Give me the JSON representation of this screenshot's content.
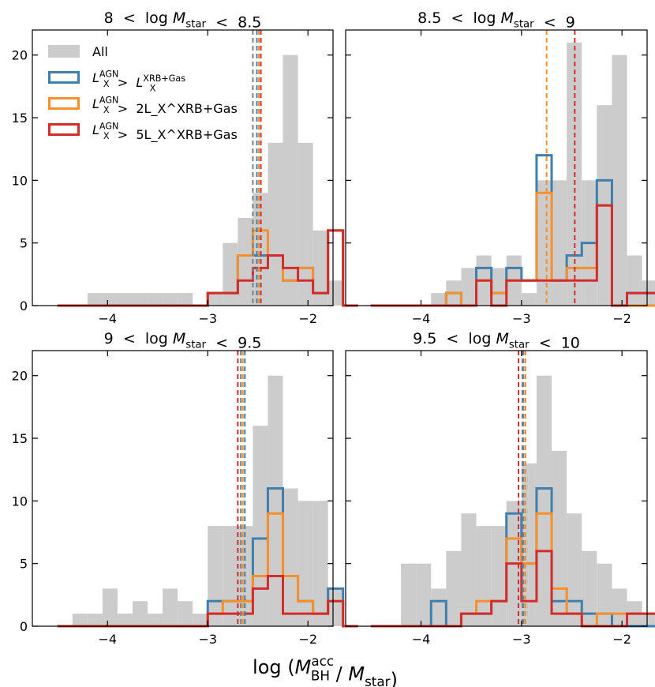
{
  "figure": {
    "xlabel": "log (M_BH^acc / M_star)"
  },
  "legend": [
    "All",
    "L_X^AGN > L_X^XRB+Gas",
    "L_X^AGN > 2L_X^XRB+Gas",
    "L_X^AGN > 5L_X^XRB+Gas"
  ],
  "chart_data": [
    {
      "type": "bar",
      "title": "8 < log M_star < 8.5",
      "xlim": [
        -4.75,
        -1.75
      ],
      "ylim": [
        0,
        22
      ],
      "xticks": [
        -4,
        -3,
        -2
      ],
      "yticks": [
        0,
        5,
        10,
        15,
        20
      ],
      "grid": false,
      "legend_position": "top-left",
      "bin_width": 0.15,
      "bin_start": -4.5,
      "series": [
        {
          "name": "All",
          "color": "#cccccc",
          "style": "filled",
          "values": [
            0,
            0,
            1,
            1,
            1,
            1,
            1,
            1,
            1,
            0,
            1,
            5,
            7,
            9,
            13,
            20,
            13,
            6,
            2,
            0
          ]
        },
        {
          "name": "L_X^AGN > L_X^XRB+Gas",
          "color": "#3f7fad",
          "style": "step",
          "values": [
            0,
            0,
            0,
            0,
            0,
            0,
            0,
            0,
            0,
            0,
            1,
            1,
            4,
            4,
            4,
            2,
            3,
            1,
            6,
            0
          ]
        },
        {
          "name": "L_X^AGN > 2L_X^XRB+Gas",
          "color": "#f7902b",
          "style": "step",
          "values": [
            0,
            0,
            0,
            0,
            0,
            0,
            0,
            0,
            0,
            0,
            1,
            1,
            4,
            6,
            4,
            2,
            3,
            1,
            6,
            0
          ]
        },
        {
          "name": "L_X^AGN > 5L_X^XRB+Gas",
          "color": "#d22d2d",
          "style": "step",
          "values": [
            0,
            0,
            0,
            0,
            0,
            0,
            0,
            0,
            0,
            0,
            1,
            1,
            2,
            3,
            4,
            3,
            2,
            1,
            6,
            0
          ]
        }
      ],
      "vlines": [
        {
          "x": -2.55,
          "color": "#808080"
        },
        {
          "x": -2.51,
          "color": "#3f7fad"
        },
        {
          "x": -2.49,
          "color": "#f7902b"
        },
        {
          "x": -2.47,
          "color": "#d22d2d"
        }
      ]
    },
    {
      "type": "bar",
      "title": "8.5 < log M_star < 9",
      "xlim": [
        -4.75,
        -1.75
      ],
      "ylim": [
        0,
        22
      ],
      "xticks": [
        -4,
        -3,
        -2
      ],
      "yticks": [
        0,
        5,
        10,
        15,
        20
      ],
      "grid": false,
      "bin_width": 0.15,
      "bin_start": -4.5,
      "series": [
        {
          "name": "All",
          "color": "#cccccc",
          "style": "filled",
          "values": [
            0,
            0,
            0,
            0,
            1,
            2,
            3,
            4,
            3,
            4,
            1,
            10,
            10,
            21,
            10,
            16,
            20,
            4,
            2,
            3
          ]
        },
        {
          "name": "L_X^AGN > L_X^XRB+Gas",
          "color": "#3f7fad",
          "style": "step",
          "values": [
            0,
            0,
            0,
            0,
            0,
            1,
            0,
            3,
            1,
            3,
            2,
            12,
            2,
            4,
            5,
            10,
            0,
            1,
            1,
            0
          ]
        },
        {
          "name": "L_X^AGN > 2L_X^XRB+Gas",
          "color": "#f7902b",
          "style": "step",
          "values": [
            0,
            0,
            0,
            0,
            0,
            1,
            0,
            2,
            1,
            2,
            2,
            9,
            2,
            3,
            3,
            8,
            0,
            0,
            0,
            0
          ]
        },
        {
          "name": "L_X^AGN > 5L_X^XRB+Gas",
          "color": "#d22d2d",
          "style": "step",
          "values": [
            0,
            0,
            0,
            0,
            0,
            0,
            0,
            2,
            0,
            2,
            2,
            2,
            2,
            2,
            2,
            8,
            0,
            1,
            1,
            0
          ]
        }
      ],
      "vlines": [
        {
          "x": -2.75,
          "color": "#f7902b"
        },
        {
          "x": -2.47,
          "color": "#d22d2d"
        }
      ]
    },
    {
      "type": "bar",
      "title": "9 < log M_star < 9.5",
      "xlim": [
        -4.75,
        -1.75
      ],
      "ylim": [
        0,
        22
      ],
      "xticks": [
        -4,
        -3,
        -2
      ],
      "yticks": [
        0,
        5,
        10,
        15,
        20
      ],
      "grid": false,
      "bin_width": 0.15,
      "bin_start": -4.5,
      "series": [
        {
          "name": "All",
          "color": "#cccccc",
          "style": "filled",
          "values": [
            0,
            1,
            1,
            3,
            1,
            2,
            1,
            3,
            2,
            1,
            8,
            8,
            8,
            16,
            20,
            11,
            10,
            10,
            3,
            0
          ]
        },
        {
          "name": "L_X^AGN > L_X^XRB+Gas",
          "color": "#3f7fad",
          "style": "step",
          "values": [
            0,
            0,
            0,
            0,
            0,
            0,
            0,
            0,
            0,
            0,
            2,
            2,
            2,
            7,
            11,
            4,
            2,
            1,
            3,
            0
          ]
        },
        {
          "name": "L_X^AGN > 2L_X^XRB+Gas",
          "color": "#f7902b",
          "style": "step",
          "values": [
            0,
            0,
            0,
            0,
            0,
            0,
            0,
            0,
            0,
            0,
            1,
            2,
            2,
            4,
            9,
            4,
            2,
            1,
            2,
            0
          ]
        },
        {
          "name": "L_X^AGN > 5L_X^XRB+Gas",
          "color": "#d22d2d",
          "style": "step",
          "values": [
            0,
            0,
            0,
            0,
            0,
            0,
            0,
            0,
            0,
            0,
            1,
            1,
            1,
            3,
            4,
            1,
            1,
            1,
            2,
            0
          ]
        }
      ],
      "vlines": [
        {
          "x": -2.7,
          "color": "#d22d2d"
        },
        {
          "x": -2.67,
          "color": "#808080"
        },
        {
          "x": -2.65,
          "color": "#f7902b"
        },
        {
          "x": -2.63,
          "color": "#3f7fad"
        }
      ]
    },
    {
      "type": "bar",
      "title": "9.5 < log M_star < 10",
      "xlim": [
        -4.75,
        -1.75
      ],
      "ylim": [
        0,
        22
      ],
      "xticks": [
        -4,
        -3,
        -2
      ],
      "yticks": [
        0,
        5,
        10,
        15,
        20
      ],
      "grid": false,
      "bin_width": 0.15,
      "bin_start": -4.5,
      "series": [
        {
          "name": "All",
          "color": "#cccccc",
          "style": "filled",
          "values": [
            0,
            0,
            5,
            5,
            3,
            6,
            9,
            8,
            8,
            10,
            13,
            20,
            14,
            9,
            6,
            5,
            3,
            2,
            1,
            0
          ]
        },
        {
          "name": "L_X^AGN > L_X^XRB+Gas",
          "color": "#3f7fad",
          "style": "step",
          "values": [
            0,
            0,
            0,
            0,
            2,
            0,
            1,
            1,
            2,
            9,
            5,
            11,
            2,
            2,
            1,
            1,
            0,
            0,
            0,
            0
          ]
        },
        {
          "name": "L_X^AGN > 2L_X^XRB+Gas",
          "color": "#f7902b",
          "style": "step",
          "values": [
            0,
            0,
            0,
            0,
            0,
            0,
            1,
            2,
            2,
            7,
            5,
            9,
            3,
            1,
            0,
            1,
            1,
            1,
            1,
            0
          ]
        },
        {
          "name": "L_X^AGN > 5L_X^XRB+Gas",
          "color": "#d22d2d",
          "style": "step",
          "values": [
            0,
            0,
            0,
            0,
            0,
            0,
            1,
            1,
            2,
            5,
            2,
            6,
            1,
            1,
            0,
            0,
            0,
            1,
            1,
            0
          ]
        }
      ],
      "vlines": [
        {
          "x": -3.03,
          "color": "#d22d2d"
        },
        {
          "x": -2.99,
          "color": "#3f7fad"
        },
        {
          "x": -2.98,
          "color": "#808080"
        },
        {
          "x": -2.96,
          "color": "#f7902b"
        }
      ]
    }
  ]
}
